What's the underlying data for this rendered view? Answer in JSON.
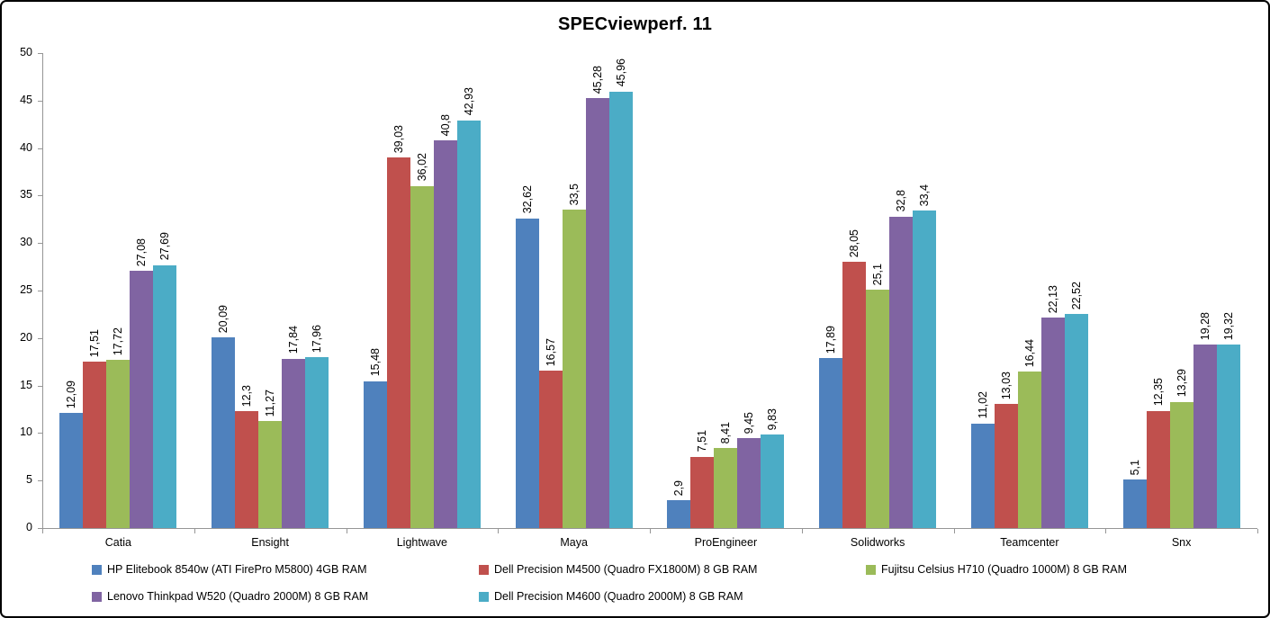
{
  "title": "SPECviewperf. 11",
  "axis_color": "#969696",
  "chart_data": {
    "type": "bar",
    "title": "SPECviewperf. 11",
    "categories": [
      "Catia",
      "Ensight",
      "Lightwave",
      "Maya",
      "ProEngineer",
      "Solidworks",
      "Teamcenter",
      "Snx"
    ],
    "series": [
      {
        "name": "HP Elitebook 8540w (ATI FirePro M5800) 4GB RAM",
        "color": "#4F81BD",
        "values": [
          12.09,
          20.09,
          15.48,
          32.62,
          2.9,
          17.89,
          11.02,
          5.1
        ],
        "labels": [
          "12,09",
          "20,09",
          "15,48",
          "32,62",
          "2,9",
          "17,89",
          "11,02",
          "5,1"
        ]
      },
      {
        "name": "Dell Precision M4500 (Quadro FX1800M) 8 GB RAM",
        "color": "#C0504D",
        "values": [
          17.51,
          12.3,
          39.03,
          16.57,
          7.51,
          28.05,
          13.03,
          12.35
        ],
        "labels": [
          "17,51",
          "12,3",
          "39,03",
          "16,57",
          "7,51",
          "28,05",
          "13,03",
          "12,35"
        ]
      },
      {
        "name": "Fujitsu Celsius H710 (Quadro 1000M) 8 GB RAM",
        "color": "#9BBB59",
        "values": [
          17.72,
          11.27,
          36.02,
          33.5,
          8.41,
          25.1,
          16.44,
          13.29
        ],
        "labels": [
          "17,72",
          "11,27",
          "36,02",
          "33,5",
          "8,41",
          "25,1",
          "16,44",
          "13,29"
        ]
      },
      {
        "name": "Lenovo Thinkpad W520 (Quadro 2000M) 8 GB RAM",
        "color": "#8064A2",
        "values": [
          27.08,
          17.84,
          40.8,
          45.28,
          9.45,
          32.8,
          22.13,
          19.28
        ],
        "labels": [
          "27,08",
          "17,84",
          "40,8",
          "45,28",
          "9,45",
          "32,8",
          "22,13",
          "19,28"
        ]
      },
      {
        "name": "Dell Precision M4600 (Quadro 2000M) 8 GB RAM",
        "color": "#4BACC6",
        "values": [
          27.69,
          17.96,
          42.93,
          45.96,
          9.83,
          33.4,
          22.52,
          19.32
        ],
        "labels": [
          "27,69",
          "17,96",
          "42,93",
          "45,96",
          "9,83",
          "33,4",
          "22,52",
          "19,32"
        ]
      }
    ],
    "ylim": [
      0,
      50
    ],
    "ytick_labels": [
      "0",
      "5",
      "10",
      "15",
      "20",
      "25",
      "30",
      "35",
      "40",
      "45",
      "50"
    ],
    "grid": false,
    "legend_position": "bottom",
    "legend_rows": [
      [
        0,
        1,
        2
      ],
      [
        3,
        4
      ]
    ]
  }
}
